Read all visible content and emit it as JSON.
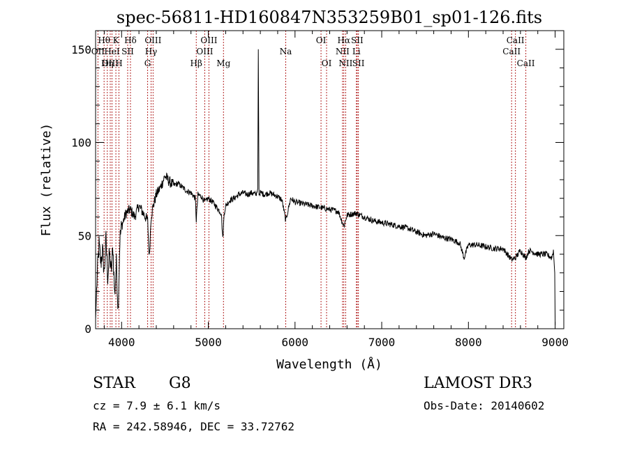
{
  "chart_data": {
    "type": "line",
    "title": "spec-56811-HD160847N353259B01_sp01-126.fits",
    "xlabel": "Wavelength (Å)",
    "ylabel": "Flux (relative)",
    "xlim": [
      3700,
      9100
    ],
    "ylim": [
      0,
      160
    ],
    "x_ticks": [
      4000,
      5000,
      6000,
      7000,
      8000,
      9000
    ],
    "x_tick_labels": [
      "4000",
      "5000",
      "6000",
      "7000",
      "8000",
      "9000"
    ],
    "y_ticks": [
      0,
      50,
      100,
      150
    ],
    "y_tick_labels": [
      "0",
      "50",
      "100",
      "150"
    ],
    "grid": false,
    "series": [
      {
        "name": "spectrum",
        "x": [
          3700,
          3720,
          3740,
          3760,
          3780,
          3800,
          3820,
          3840,
          3860,
          3880,
          3900,
          3920,
          3940,
          3960,
          3980,
          4000,
          4050,
          4100,
          4150,
          4200,
          4250,
          4300,
          4320,
          4340,
          4360,
          4400,
          4450,
          4500,
          4550,
          4600,
          4650,
          4700,
          4750,
          4800,
          4850,
          4861,
          4880,
          4920,
          4960,
          5000,
          5050,
          5100,
          5150,
          5167,
          5183,
          5200,
          5250,
          5300,
          5350,
          5400,
          5450,
          5500,
          5550,
          5570,
          5577,
          5585,
          5600,
          5650,
          5700,
          5750,
          5800,
          5850,
          5893,
          5950,
          6000,
          6100,
          6200,
          6300,
          6400,
          6500,
          6563,
          6600,
          6700,
          6800,
          6900,
          7000,
          7100,
          7200,
          7300,
          7400,
          7500,
          7600,
          7700,
          7800,
          7900,
          7950,
          8000,
          8100,
          8200,
          8300,
          8400,
          8498,
          8542,
          8600,
          8662,
          8700,
          8800,
          8900,
          8960,
          8980,
          8995,
          9000
        ],
        "y": [
          5,
          30,
          45,
          35,
          42,
          30,
          48,
          28,
          40,
          30,
          44,
          18,
          35,
          10,
          48,
          55,
          62,
          64,
          60,
          66,
          62,
          58,
          38,
          60,
          65,
          72,
          76,
          82,
          79,
          77,
          78,
          76,
          74,
          73,
          70,
          58,
          72,
          71,
          68,
          70,
          68,
          65,
          62,
          48,
          62,
          66,
          69,
          70,
          72,
          73,
          72,
          73,
          72,
          75,
          150,
          72,
          73,
          72,
          73,
          72,
          71,
          69,
          58,
          70,
          68,
          67,
          66,
          65,
          64,
          63,
          55,
          61,
          62,
          60,
          58,
          57,
          56,
          55,
          54,
          52,
          50,
          51,
          49,
          48,
          46,
          38,
          45,
          45,
          44,
          43,
          43,
          37,
          38,
          42,
          38,
          42,
          40,
          40,
          38,
          42,
          30,
          2
        ]
      }
    ],
    "line_labels": [
      {
        "label": "Hθ",
        "x": 3798,
        "row": 1
      },
      {
        "label": "OII",
        "x": 3727,
        "row": 2
      },
      {
        "label": "OIII",
        "x": 3869,
        "row": 3
      },
      {
        "label": "K",
        "x": 3934,
        "row": 1
      },
      {
        "label": "Hη",
        "x": 3835,
        "row": 3
      },
      {
        "label": "HeI",
        "x": 3889,
        "row": 2
      },
      {
        "label": "H",
        "x": 3969,
        "row": 3
      },
      {
        "label": "SII",
        "x": 4070,
        "row": 2
      },
      {
        "label": "Hδ",
        "x": 4102,
        "row": 1
      },
      {
        "label": "G",
        "x": 4300,
        "row": 3
      },
      {
        "label": "OIII",
        "x": 4363,
        "row": 1
      },
      {
        "label": "Hγ",
        "x": 4340,
        "row": 2
      },
      {
        "label": "Hβ",
        "x": 4861,
        "row": 3
      },
      {
        "label": "OIII",
        "x": 5007,
        "row": 1
      },
      {
        "label": "OIII",
        "x": 4959,
        "row": 2
      },
      {
        "label": "Mg",
        "x": 5175,
        "row": 3
      },
      {
        "label": "Na",
        "x": 5893,
        "row": 2
      },
      {
        "label": "OI",
        "x": 6300,
        "row": 1
      },
      {
        "label": "OI",
        "x": 6364,
        "row": 3
      },
      {
        "label": "Hα",
        "x": 6563,
        "row": 1
      },
      {
        "label": "NII",
        "x": 6548,
        "row": 2
      },
      {
        "label": "NII",
        "x": 6584,
        "row": 3
      },
      {
        "label": "SII",
        "x": 6717,
        "row": 1
      },
      {
        "label": "Li",
        "x": 6708,
        "row": 2
      },
      {
        "label": "SII",
        "x": 6731,
        "row": 3
      },
      {
        "label": "CaII",
        "x": 8542,
        "row": 1
      },
      {
        "label": "CaII",
        "x": 8498,
        "row": 2
      },
      {
        "label": "CaII",
        "x": 8662,
        "row": 3
      }
    ]
  },
  "info": {
    "object_type": "STAR",
    "subclass": "G8",
    "survey": "LAMOST DR3",
    "cz": "cz = 7.9 ± 6.1 km/s",
    "obs_date": "Obs-Date: 20140602",
    "coords": "RA = 242.58946, DEC =  33.72762"
  },
  "colors": {
    "axis": "#000000",
    "spectrum": "#000000",
    "line_marker": "#b22222",
    "background": "#ffffff"
  }
}
